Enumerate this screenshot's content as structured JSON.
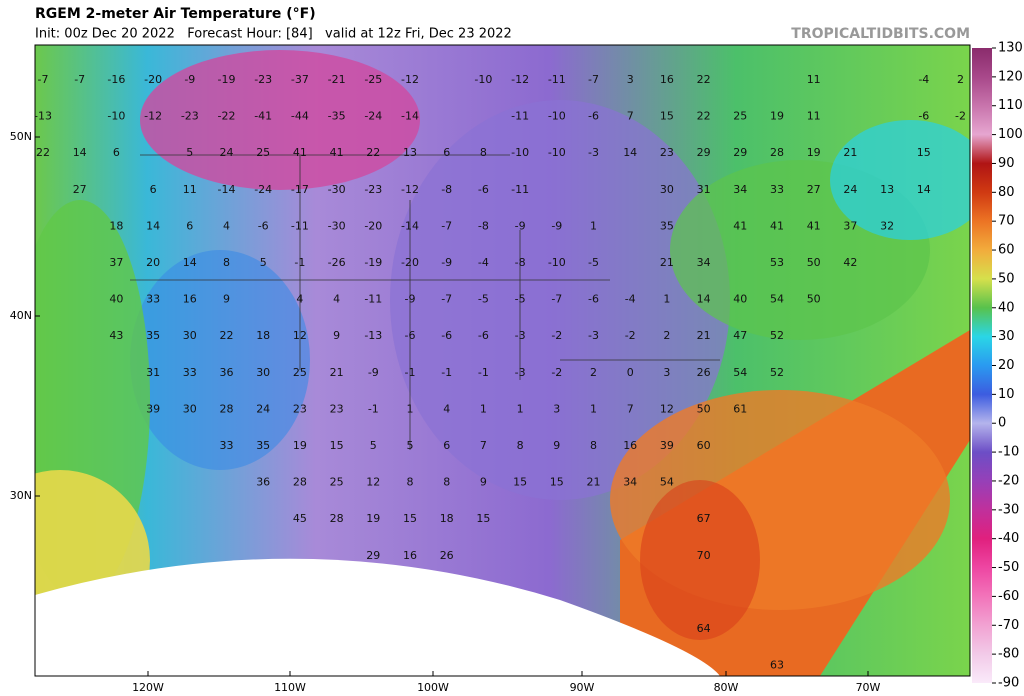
{
  "header": {
    "title": "RGEM 2-meter Air Temperature (°F)",
    "subtitle": "Init: 00z Dec 20 2022   Forecast Hour: [84]   valid at 12z Fri, Dec 23 2022",
    "site": "TROPICALTIDBITS.COM"
  },
  "lat_labels": [
    "50N",
    "40N",
    "30N"
  ],
  "lon_labels": [
    "120W",
    "110W",
    "100W",
    "90W",
    "80W",
    "70W"
  ],
  "colorbar": {
    "ticks": [
      130,
      120,
      110,
      100,
      90,
      80,
      70,
      60,
      50,
      40,
      30,
      20,
      10,
      0,
      -10,
      -20,
      -30,
      -40,
      -50,
      -60,
      -70,
      -80,
      -90
    ],
    "colors": [
      "#8a2c6c",
      "#a8488a",
      "#c874ac",
      "#e6a6d0",
      "#b01414",
      "#d03a12",
      "#ec7424",
      "#f2ac3c",
      "#d6e04c",
      "#58c24c",
      "#2ad6e6",
      "#2a9af0",
      "#3c5ce0",
      "#b4b4ec",
      "#6c4ec6",
      "#9640b8",
      "#c0309c",
      "#e0207e",
      "#ee46a2",
      "#f274ba",
      "#f2a2d2",
      "#f2cae8",
      "#faeafa"
    ]
  },
  "stations": {
    "rows": [
      [
        -7,
        -7,
        -16,
        -20,
        -9,
        -19,
        -23,
        -37,
        -21,
        -25,
        -12,
        null,
        -10,
        -12,
        -11,
        -7,
        3,
        16,
        22,
        null,
        null,
        11,
        null,
        null,
        -4,
        2
      ],
      [
        -13,
        null,
        -10,
        -12,
        -23,
        -22,
        -41,
        -44,
        -35,
        -24,
        -14,
        null,
        null,
        -11,
        -10,
        -6,
        7,
        15,
        22,
        25,
        19,
        11,
        null,
        null,
        -6,
        -2
      ],
      [
        22,
        14,
        6,
        null,
        5,
        24,
        25,
        41,
        41,
        22,
        13,
        6,
        8,
        -10,
        -10,
        -3,
        14,
        23,
        29,
        29,
        28,
        19,
        21,
        null,
        15,
        null
      ],
      [
        null,
        27,
        null,
        6,
        11,
        -14,
        -24,
        -17,
        -30,
        -23,
        -12,
        -8,
        -6,
        -11,
        null,
        null,
        null,
        30,
        31,
        34,
        33,
        27,
        24,
        13,
        14,
        null
      ],
      [
        null,
        null,
        18,
        14,
        6,
        4,
        -6,
        -11,
        -30,
        -20,
        -14,
        -7,
        -8,
        -9,
        -9,
        1,
        null,
        35,
        null,
        41,
        41,
        41,
        37,
        32,
        null,
        null
      ],
      [
        null,
        null,
        37,
        20,
        14,
        8,
        5,
        -1,
        -26,
        -19,
        -20,
        -9,
        -4,
        -8,
        -10,
        -5,
        null,
        21,
        34,
        null,
        53,
        50,
        42,
        null,
        null,
        null
      ],
      [
        null,
        null,
        40,
        33,
        16,
        9,
        null,
        4,
        4,
        -11,
        -9,
        -7,
        -5,
        -5,
        -7,
        -6,
        -4,
        1,
        14,
        40,
        54,
        50,
        null,
        null,
        null,
        null
      ],
      [
        null,
        null,
        43,
        35,
        30,
        22,
        18,
        12,
        9,
        -13,
        -6,
        -6,
        -6,
        -3,
        -2,
        -3,
        -2,
        2,
        21,
        47,
        52,
        null,
        null,
        null,
        null,
        null
      ],
      [
        null,
        null,
        null,
        31,
        33,
        36,
        30,
        25,
        21,
        -9,
        -1,
        -1,
        -1,
        -3,
        -2,
        2,
        0,
        3,
        26,
        54,
        52,
        null,
        null,
        null,
        null,
        null
      ],
      [
        null,
        null,
        null,
        39,
        30,
        28,
        24,
        23,
        23,
        -1,
        1,
        4,
        1,
        1,
        3,
        1,
        7,
        12,
        50,
        61,
        null,
        null,
        null,
        null,
        null,
        null
      ],
      [
        null,
        null,
        null,
        null,
        null,
        33,
        35,
        19,
        15,
        5,
        5,
        6,
        7,
        8,
        9,
        8,
        16,
        39,
        60,
        null,
        null,
        null,
        null,
        null,
        null,
        null
      ],
      [
        null,
        null,
        null,
        null,
        null,
        null,
        36,
        28,
        25,
        12,
        8,
        8,
        9,
        15,
        15,
        21,
        34,
        54,
        null,
        null,
        null,
        null,
        null,
        null,
        null,
        null
      ],
      [
        null,
        null,
        null,
        null,
        null,
        null,
        null,
        45,
        28,
        19,
        15,
        18,
        15,
        null,
        null,
        null,
        null,
        null,
        67,
        null,
        null,
        null,
        null,
        null,
        null,
        null
      ],
      [
        null,
        null,
        null,
        null,
        null,
        null,
        null,
        null,
        null,
        29,
        16,
        26,
        null,
        null,
        null,
        null,
        null,
        null,
        70,
        null,
        null,
        null,
        null,
        null,
        null,
        null
      ],
      [
        null,
        null,
        null,
        null,
        null,
        null,
        null,
        null,
        null,
        null,
        null,
        null,
        null,
        null,
        null,
        null,
        null,
        null,
        null,
        null,
        null,
        null,
        null,
        null,
        null,
        null
      ],
      [
        null,
        null,
        null,
        null,
        null,
        null,
        null,
        null,
        null,
        null,
        null,
        null,
        null,
        null,
        null,
        null,
        null,
        null,
        64,
        null,
        null,
        null,
        null,
        null,
        null,
        null
      ],
      [
        null,
        null,
        null,
        null,
        null,
        null,
        null,
        null,
        null,
        null,
        null,
        null,
        null,
        null,
        null,
        null,
        null,
        null,
        null,
        null,
        63,
        null,
        null,
        null,
        null,
        null
      ]
    ]
  }
}
